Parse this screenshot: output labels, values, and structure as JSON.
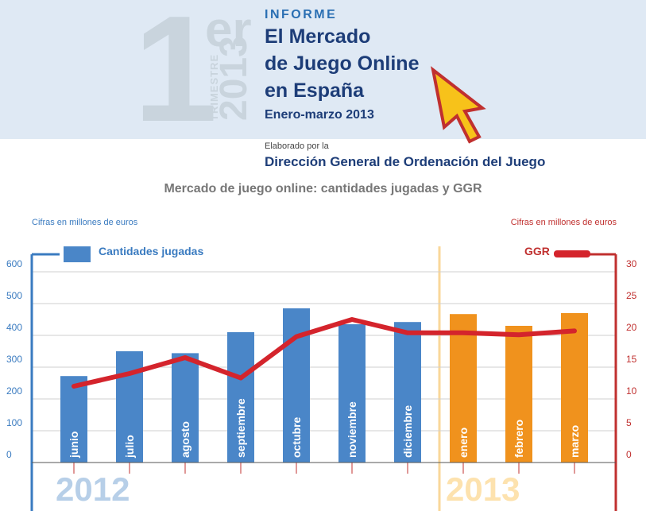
{
  "header": {
    "big_number": "1",
    "ordinal": "er",
    "trimestre_label": "TRIMESTRE",
    "trimestre_year": "2013",
    "informe": "INFORME",
    "title_lines": [
      "El Mercado",
      "de Juego Online",
      "en España"
    ],
    "subtitle": "Enero-marzo 2013",
    "elaborado": "Elaborado por la",
    "organization": "Dirección General de Ordenación del Juego"
  },
  "icons": {
    "cursor": "cursor-arrow-icon"
  },
  "colors": {
    "bar_2012": "#4a86c8",
    "bar_2013": "#f0921d",
    "line": "#d4242c",
    "left_axis": "#3a7bc0",
    "right_axis": "#c0302f",
    "divider": "#f9d79a"
  },
  "chart_data": {
    "type": "bar",
    "title": "Mercado de juego online: cantidades jugadas y GGR",
    "left_units": "Cifras en millones de euros",
    "right_units": "Cifras en millones de euros",
    "categories": [
      "junio",
      "julio",
      "agosto",
      "septiembre",
      "octubre",
      "noviembre",
      "diciembre",
      "enero",
      "febrero",
      "marzo"
    ],
    "year_groups": [
      {
        "label": "2012",
        "categories": [
          "junio",
          "julio",
          "agosto",
          "septiembre",
          "octubre",
          "noviembre",
          "diciembre"
        ]
      },
      {
        "label": "2013",
        "categories": [
          "enero",
          "febrero",
          "marzo"
        ]
      }
    ],
    "series": [
      {
        "name": "Cantidades jugadas",
        "type": "bar",
        "axis": "left",
        "values": [
          272,
          350,
          344,
          410,
          485,
          435,
          442,
          467,
          430,
          470
        ]
      },
      {
        "name": "GGR",
        "type": "line",
        "axis": "right",
        "values": [
          12,
          14,
          16.5,
          13.3,
          19.8,
          22.5,
          20.4,
          20.4,
          20.1,
          20.7
        ]
      }
    ],
    "left_axis": {
      "min": 0,
      "max": 600,
      "ticks": [
        0,
        100,
        200,
        300,
        400,
        500,
        600
      ]
    },
    "right_axis": {
      "min": 0,
      "max": 30,
      "ticks": [
        0,
        5,
        10,
        15,
        20,
        25,
        30
      ]
    },
    "grid": true,
    "legend_placement": "top"
  }
}
